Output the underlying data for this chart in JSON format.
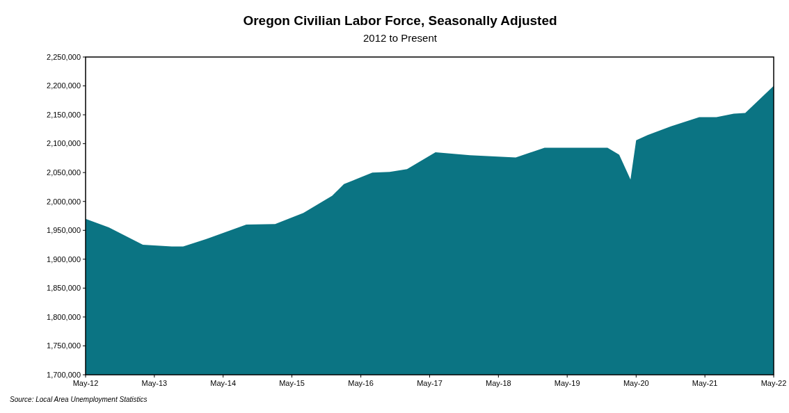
{
  "chart_data": {
    "type": "area",
    "title": "Oregon Civilian Labor Force, Seasonally Adjusted",
    "subtitle": "2012 to Present",
    "x": [
      "2012-05",
      "2012-09",
      "2013-03",
      "2013-08",
      "2013-10",
      "2014-02",
      "2014-09",
      "2015-02",
      "2015-07",
      "2015-12",
      "2016-02",
      "2016-07",
      "2016-10",
      "2017-01",
      "2017-06",
      "2017-12",
      "2018-08",
      "2019-01",
      "2019-12",
      "2020-02",
      "2020-04",
      "2020-05",
      "2020-07",
      "2020-11",
      "2021-04",
      "2021-07",
      "2021-10",
      "2021-12",
      "2022-05"
    ],
    "series": [
      {
        "color": "#0b7483",
        "values": [
          1970000,
          1955000,
          1925000,
          1922000,
          1922000,
          1935000,
          1960000,
          1961000,
          1980000,
          2010000,
          2030000,
          2050000,
          2051000,
          2056000,
          2085000,
          2080000,
          2076000,
          2093000,
          2093000,
          2081000,
          2038000,
          2106000,
          2115000,
          2130000,
          2146000,
          2146000,
          2152000,
          2153000,
          2200000
        ]
      }
    ],
    "xlim": [
      "2012-05",
      "2022-05"
    ],
    "xticks": [
      {
        "value": "2012-05",
        "label": "May-12"
      },
      {
        "value": "2013-05",
        "label": "May-13"
      },
      {
        "value": "2014-05",
        "label": "May-14"
      },
      {
        "value": "2015-05",
        "label": "May-15"
      },
      {
        "value": "2016-05",
        "label": "May-16"
      },
      {
        "value": "2017-05",
        "label": "May-17"
      },
      {
        "value": "2018-05",
        "label": "May-18"
      },
      {
        "value": "2019-05",
        "label": "May-19"
      },
      {
        "value": "2020-05",
        "label": "May-20"
      },
      {
        "value": "2021-05",
        "label": "May-21"
      },
      {
        "value": "2022-05",
        "label": "May-22"
      }
    ],
    "ylim": [
      1700000,
      2250000
    ],
    "yticks": [
      {
        "value": 1700000,
        "label": "1,700,000"
      },
      {
        "value": 1750000,
        "label": "1,750,000"
      },
      {
        "value": 1800000,
        "label": "1,800,000"
      },
      {
        "value": 1850000,
        "label": "1,850,000"
      },
      {
        "value": 1900000,
        "label": "1,900,000"
      },
      {
        "value": 1950000,
        "label": "1,950,000"
      },
      {
        "value": 2000000,
        "label": "2,000,000"
      },
      {
        "value": 2050000,
        "label": "2,050,000"
      },
      {
        "value": 2100000,
        "label": "2,100,000"
      },
      {
        "value": 2150000,
        "label": "2,150,000"
      },
      {
        "value": 2200000,
        "label": "2,200,000"
      },
      {
        "value": 2250000,
        "label": "2,250,000"
      }
    ],
    "annotations": [
      "Source: Local Area Unemployment Statistics"
    ],
    "grid": false
  }
}
